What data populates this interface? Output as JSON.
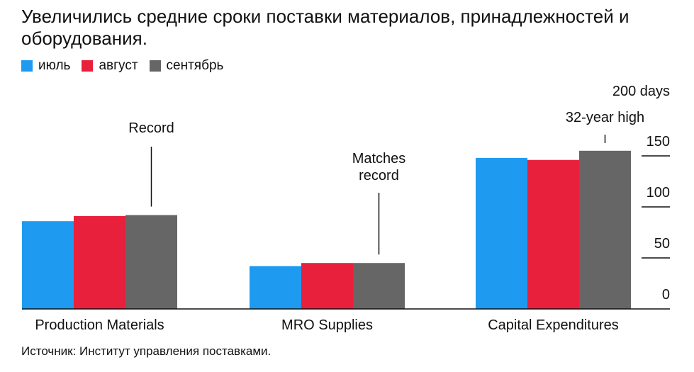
{
  "title": "Увеличились средние сроки поставки материалов, принадлежностей и оборудования.",
  "source": "Источник: Институт управления поставками.",
  "colors": {
    "july": "#1e9bf0",
    "august": "#e8203c",
    "september": "#666666",
    "axis": "#111111"
  },
  "chart_data": {
    "type": "bar",
    "categories": [
      "Production Materials",
      "MRO Supplies",
      "Capital Expenditures"
    ],
    "series": [
      {
        "name": "июль",
        "color": "#1e9bf0",
        "values": [
          86,
          42,
          148
        ]
      },
      {
        "name": "август",
        "color": "#e8203c",
        "values": [
          91,
          45,
          146
        ]
      },
      {
        "name": "сентябрь",
        "color": "#666666",
        "values": [
          92,
          45,
          155
        ]
      }
    ],
    "ylim": [
      0,
      200
    ],
    "yticks": [
      0,
      50,
      100,
      150
    ],
    "ytick_labels": [
      "0",
      "50",
      "100",
      "150"
    ],
    "ytop_label": "200 days",
    "annotations": [
      {
        "text": "Record",
        "category": 0,
        "series": 2
      },
      {
        "text": "Matches record",
        "category": 1,
        "series": 2
      },
      {
        "text": "32-year high",
        "category": 2,
        "series": 2
      }
    ],
    "legend": "top-left",
    "grid": false
  }
}
